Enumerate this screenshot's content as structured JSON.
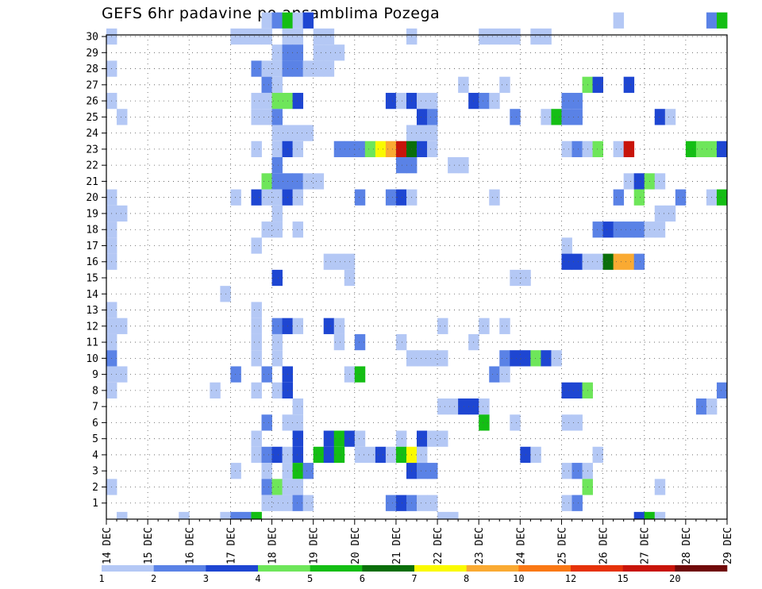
{
  "chart_data": {
    "type": "heatmap",
    "title": "GEFS 6hr padavine po ansamblima Pozega",
    "x_tick_labels": [
      "14 DEC",
      "15 DEC",
      "16 DEC",
      "17 DEC",
      "18 DEC",
      "19 DEC",
      "20 DEC",
      "21 DEC",
      "22 DEC",
      "23 DEC",
      "24 DEC",
      "25 DEC",
      "26 DEC",
      "27 DEC",
      "28 DEC",
      "29 DEC"
    ],
    "y_tick_labels": [
      "1",
      "2",
      "3",
      "4",
      "5",
      "6",
      "7",
      "8",
      "9",
      "10",
      "11",
      "12",
      "13",
      "14",
      "15",
      "16",
      "17",
      "18",
      "19",
      "20",
      "21",
      "22",
      "23",
      "24",
      "25",
      "26",
      "27",
      "28",
      "29",
      "30"
    ],
    "x_steps_per_day": 4,
    "x_range_steps": [
      0,
      60
    ],
    "y_range": [
      0,
      30
    ],
    "grid": true,
    "colorbar": {
      "labels": [
        "1",
        "2",
        "3",
        "4",
        "5",
        "6",
        "7",
        "8",
        "10",
        "12",
        "15",
        "20"
      ],
      "colors": [
        "#b4c8f5",
        "#5a82e6",
        "#1e46d2",
        "#6ee65a",
        "#14be14",
        "#0a6e0a",
        "#fafa00",
        "#faaa32",
        "#fa7814",
        "#e6320a",
        "#c8140a",
        "#700a0a"
      ]
    },
    "cells": [
      [
        30,
        15,
        1
      ],
      [
        30,
        16,
        2
      ],
      [
        30,
        17,
        5
      ],
      [
        30,
        18,
        1
      ],
      [
        30,
        19,
        3
      ],
      [
        30,
        49,
        1
      ],
      [
        30,
        58,
        2
      ],
      [
        30,
        59,
        5
      ],
      [
        29,
        0,
        1
      ],
      [
        29,
        12,
        1
      ],
      [
        29,
        13,
        1
      ],
      [
        29,
        14,
        1
      ],
      [
        29,
        15,
        1
      ],
      [
        29,
        17,
        1
      ],
      [
        29,
        18,
        1
      ],
      [
        29,
        20,
        1
      ],
      [
        29,
        21,
        1
      ],
      [
        29,
        29,
        1
      ],
      [
        29,
        36,
        1
      ],
      [
        29,
        37,
        1
      ],
      [
        29,
        38,
        1
      ],
      [
        29,
        39,
        1
      ],
      [
        29,
        41,
        1
      ],
      [
        29,
        42,
        1
      ],
      [
        28,
        16,
        1
      ],
      [
        28,
        17,
        2
      ],
      [
        28,
        18,
        2
      ],
      [
        28,
        20,
        1
      ],
      [
        28,
        21,
        1
      ],
      [
        28,
        22,
        1
      ],
      [
        27,
        0,
        1
      ],
      [
        27,
        14,
        2
      ],
      [
        27,
        15,
        1
      ],
      [
        27,
        16,
        1
      ],
      [
        27,
        17,
        2
      ],
      [
        27,
        18,
        2
      ],
      [
        27,
        19,
        1
      ],
      [
        27,
        20,
        1
      ],
      [
        27,
        21,
        1
      ],
      [
        26,
        15,
        2
      ],
      [
        26,
        16,
        1
      ],
      [
        26,
        34,
        1
      ],
      [
        26,
        38,
        1
      ],
      [
        26,
        46,
        4
      ],
      [
        26,
        47,
        3
      ],
      [
        26,
        50,
        3
      ],
      [
        25,
        0,
        1
      ],
      [
        25,
        14,
        1
      ],
      [
        25,
        15,
        1
      ],
      [
        25,
        16,
        4
      ],
      [
        25,
        17,
        4
      ],
      [
        25,
        18,
        3
      ],
      [
        25,
        27,
        3
      ],
      [
        25,
        28,
        1
      ],
      [
        25,
        29,
        3
      ],
      [
        25,
        30,
        1
      ],
      [
        25,
        31,
        1
      ],
      [
        25,
        35,
        3
      ],
      [
        25,
        36,
        2
      ],
      [
        25,
        37,
        1
      ],
      [
        25,
        44,
        2
      ],
      [
        25,
        45,
        2
      ],
      [
        24,
        1,
        1
      ],
      [
        24,
        14,
        1
      ],
      [
        24,
        15,
        1
      ],
      [
        24,
        16,
        2
      ],
      [
        24,
        30,
        3
      ],
      [
        24,
        31,
        2
      ],
      [
        24,
        39,
        2
      ],
      [
        24,
        42,
        1
      ],
      [
        24,
        43,
        5
      ],
      [
        24,
        44,
        2
      ],
      [
        24,
        45,
        2
      ],
      [
        24,
        53,
        3
      ],
      [
        24,
        54,
        1
      ],
      [
        23,
        16,
        1
      ],
      [
        23,
        17,
        1
      ],
      [
        23,
        18,
        1
      ],
      [
        23,
        19,
        1
      ],
      [
        23,
        29,
        1
      ],
      [
        23,
        30,
        1
      ],
      [
        23,
        31,
        1
      ],
      [
        22,
        14,
        1
      ],
      [
        22,
        16,
        1
      ],
      [
        22,
        17,
        3
      ],
      [
        22,
        18,
        1
      ],
      [
        22,
        22,
        2
      ],
      [
        22,
        23,
        2
      ],
      [
        22,
        24,
        2
      ],
      [
        22,
        25,
        4
      ],
      [
        22,
        26,
        7
      ],
      [
        22,
        27,
        8
      ],
      [
        22,
        28,
        11
      ],
      [
        22,
        29,
        6
      ],
      [
        22,
        30,
        3
      ],
      [
        22,
        31,
        1
      ],
      [
        22,
        44,
        1
      ],
      [
        22,
        45,
        2
      ],
      [
        22,
        46,
        1
      ],
      [
        22,
        47,
        4
      ],
      [
        22,
        49,
        1
      ],
      [
        22,
        50,
        11
      ],
      [
        22,
        56,
        5
      ],
      [
        22,
        57,
        4
      ],
      [
        22,
        58,
        4
      ],
      [
        22,
        59,
        3
      ],
      [
        21,
        16,
        2
      ],
      [
        21,
        28,
        2
      ],
      [
        21,
        29,
        2
      ],
      [
        21,
        33,
        1
      ],
      [
        21,
        34,
        1
      ],
      [
        20,
        15,
        4
      ],
      [
        20,
        16,
        2
      ],
      [
        20,
        17,
        2
      ],
      [
        20,
        18,
        2
      ],
      [
        20,
        19,
        1
      ],
      [
        20,
        20,
        1
      ],
      [
        20,
        50,
        1
      ],
      [
        20,
        51,
        3
      ],
      [
        20,
        52,
        4
      ],
      [
        20,
        53,
        1
      ],
      [
        19,
        0,
        1
      ],
      [
        19,
        12,
        1
      ],
      [
        19,
        14,
        3
      ],
      [
        19,
        15,
        1
      ],
      [
        19,
        16,
        1
      ],
      [
        19,
        17,
        3
      ],
      [
        19,
        18,
        1
      ],
      [
        19,
        24,
        2
      ],
      [
        19,
        27,
        2
      ],
      [
        19,
        28,
        3
      ],
      [
        19,
        29,
        1
      ],
      [
        19,
        37,
        1
      ],
      [
        19,
        49,
        2
      ],
      [
        19,
        51,
        4
      ],
      [
        19,
        55,
        2
      ],
      [
        19,
        58,
        1
      ],
      [
        19,
        59,
        5
      ],
      [
        18,
        0,
        1
      ],
      [
        18,
        1,
        1
      ],
      [
        18,
        16,
        1
      ],
      [
        18,
        53,
        1
      ],
      [
        18,
        54,
        1
      ],
      [
        17,
        0,
        1
      ],
      [
        17,
        15,
        1
      ],
      [
        17,
        16,
        1
      ],
      [
        17,
        18,
        1
      ],
      [
        17,
        47,
        2
      ],
      [
        17,
        48,
        3
      ],
      [
        17,
        49,
        2
      ],
      [
        17,
        50,
        2
      ],
      [
        17,
        51,
        2
      ],
      [
        17,
        52,
        1
      ],
      [
        17,
        53,
        1
      ],
      [
        16,
        0,
        1
      ],
      [
        16,
        14,
        1
      ],
      [
        16,
        44,
        1
      ],
      [
        15,
        0,
        1
      ],
      [
        15,
        21,
        1
      ],
      [
        15,
        22,
        1
      ],
      [
        15,
        23,
        1
      ],
      [
        15,
        44,
        3
      ],
      [
        15,
        45,
        3
      ],
      [
        15,
        46,
        1
      ],
      [
        15,
        47,
        1
      ],
      [
        15,
        48,
        6
      ],
      [
        15,
        49,
        8
      ],
      [
        15,
        50,
        8
      ],
      [
        15,
        51,
        2
      ],
      [
        14,
        16,
        3
      ],
      [
        14,
        23,
        1
      ],
      [
        14,
        39,
        1
      ],
      [
        14,
        40,
        1
      ],
      [
        13,
        11,
        1
      ],
      [
        12,
        0,
        1
      ],
      [
        12,
        14,
        1
      ],
      [
        11,
        0,
        1
      ],
      [
        11,
        1,
        1
      ],
      [
        11,
        14,
        1
      ],
      [
        11,
        16,
        2
      ],
      [
        11,
        17,
        3
      ],
      [
        11,
        18,
        1
      ],
      [
        11,
        21,
        3
      ],
      [
        11,
        22,
        1
      ],
      [
        11,
        32,
        1
      ],
      [
        11,
        36,
        1
      ],
      [
        11,
        38,
        1
      ],
      [
        10,
        0,
        1
      ],
      [
        10,
        14,
        1
      ],
      [
        10,
        16,
        1
      ],
      [
        10,
        22,
        1
      ],
      [
        10,
        24,
        2
      ],
      [
        10,
        28,
        1
      ],
      [
        10,
        35,
        1
      ],
      [
        9,
        0,
        2
      ],
      [
        9,
        14,
        1
      ],
      [
        9,
        16,
        1
      ],
      [
        9,
        29,
        1
      ],
      [
        9,
        30,
        1
      ],
      [
        9,
        31,
        1
      ],
      [
        9,
        32,
        1
      ],
      [
        9,
        38,
        2
      ],
      [
        9,
        39,
        3
      ],
      [
        9,
        40,
        3
      ],
      [
        9,
        41,
        4
      ],
      [
        9,
        42,
        3
      ],
      [
        9,
        43,
        1
      ],
      [
        8,
        0,
        1
      ],
      [
        8,
        1,
        1
      ],
      [
        8,
        12,
        2
      ],
      [
        8,
        15,
        2
      ],
      [
        8,
        17,
        3
      ],
      [
        8,
        23,
        1
      ],
      [
        8,
        24,
        5
      ],
      [
        8,
        37,
        2
      ],
      [
        8,
        38,
        1
      ],
      [
        7,
        0,
        1
      ],
      [
        7,
        10,
        1
      ],
      [
        7,
        14,
        1
      ],
      [
        7,
        16,
        1
      ],
      [
        7,
        17,
        3
      ],
      [
        7,
        44,
        3
      ],
      [
        7,
        45,
        3
      ],
      [
        7,
        46,
        4
      ],
      [
        7,
        59,
        2
      ],
      [
        6,
        18,
        1
      ],
      [
        6,
        32,
        1
      ],
      [
        6,
        33,
        1
      ],
      [
        6,
        34,
        3
      ],
      [
        6,
        35,
        3
      ],
      [
        6,
        36,
        1
      ],
      [
        6,
        57,
        2
      ],
      [
        6,
        58,
        1
      ],
      [
        5,
        15,
        2
      ],
      [
        5,
        17,
        1
      ],
      [
        5,
        18,
        1
      ],
      [
        5,
        36,
        5
      ],
      [
        5,
        39,
        1
      ],
      [
        5,
        44,
        1
      ],
      [
        5,
        45,
        1
      ],
      [
        4,
        14,
        1
      ],
      [
        4,
        18,
        3
      ],
      [
        4,
        21,
        3
      ],
      [
        4,
        22,
        5
      ],
      [
        4,
        23,
        3
      ],
      [
        4,
        24,
        1
      ],
      [
        4,
        28,
        1
      ],
      [
        4,
        30,
        3
      ],
      [
        4,
        31,
        1
      ],
      [
        4,
        32,
        1
      ],
      [
        3,
        14,
        1
      ],
      [
        3,
        15,
        2
      ],
      [
        3,
        16,
        3
      ],
      [
        3,
        17,
        1
      ],
      [
        3,
        18,
        3
      ],
      [
        3,
        20,
        5
      ],
      [
        3,
        21,
        3
      ],
      [
        3,
        22,
        5
      ],
      [
        3,
        24,
        1
      ],
      [
        3,
        25,
        1
      ],
      [
        3,
        26,
        3
      ],
      [
        3,
        27,
        1
      ],
      [
        3,
        28,
        5
      ],
      [
        3,
        29,
        7
      ],
      [
        3,
        30,
        1
      ],
      [
        3,
        40,
        3
      ],
      [
        3,
        41,
        1
      ],
      [
        3,
        47,
        1
      ],
      [
        2,
        12,
        1
      ],
      [
        2,
        15,
        1
      ],
      [
        2,
        17,
        1
      ],
      [
        2,
        18,
        5
      ],
      [
        2,
        19,
        2
      ],
      [
        2,
        29,
        3
      ],
      [
        2,
        30,
        2
      ],
      [
        2,
        31,
        2
      ],
      [
        2,
        44,
        1
      ],
      [
        2,
        45,
        2
      ],
      [
        2,
        46,
        1
      ],
      [
        1,
        0,
        1
      ],
      [
        1,
        15,
        2
      ],
      [
        1,
        16,
        4
      ],
      [
        1,
        17,
        1
      ],
      [
        1,
        18,
        1
      ],
      [
        1,
        46,
        4
      ],
      [
        1,
        53,
        1
      ],
      [
        0,
        15,
        1
      ],
      [
        0,
        16,
        1
      ],
      [
        0,
        17,
        1
      ],
      [
        0,
        18,
        2
      ],
      [
        0,
        19,
        1
      ],
      [
        0,
        27,
        2
      ],
      [
        0,
        28,
        3
      ],
      [
        0,
        29,
        2
      ],
      [
        0,
        30,
        1
      ],
      [
        0,
        31,
        1
      ],
      [
        0,
        44,
        1
      ],
      [
        0,
        45,
        2
      ],
      [
        -1,
        1,
        1
      ],
      [
        -1,
        7,
        1
      ],
      [
        -1,
        11,
        1
      ],
      [
        -1,
        12,
        2
      ],
      [
        -1,
        13,
        2
      ],
      [
        -1,
        14,
        5
      ],
      [
        -1,
        32,
        1
      ],
      [
        -1,
        33,
        1
      ],
      [
        -1,
        51,
        3
      ],
      [
        -1,
        52,
        5
      ],
      [
        -1,
        53,
        1
      ]
    ]
  }
}
